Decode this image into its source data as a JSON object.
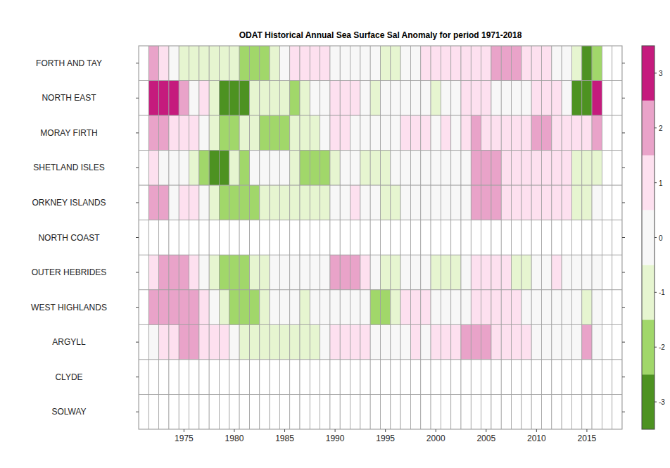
{
  "chart_data": {
    "type": "heatmap",
    "title": "ODAT Historical Annual Sea Surface Sal Anomaly for period 1971-2018",
    "categories": [
      "FORTH AND TAY",
      "NORTH EAST",
      "MORAY FIRTH",
      "SHETLAND ISLES",
      "ORKNEY ISLANDS",
      "NORTH COAST",
      "OUTER HEBRIDES",
      "WEST HIGHLANDS",
      "ARGYLL",
      "CLYDE",
      "SOLWAY"
    ],
    "x": [
      1971,
      1972,
      1973,
      1974,
      1975,
      1976,
      1977,
      1978,
      1979,
      1980,
      1981,
      1982,
      1983,
      1984,
      1985,
      1986,
      1987,
      1988,
      1989,
      1990,
      1991,
      1992,
      1993,
      1994,
      1995,
      1996,
      1997,
      1998,
      1999,
      2000,
      2001,
      2002,
      2003,
      2004,
      2005,
      2006,
      2007,
      2008,
      2009,
      2010,
      2011,
      2012,
      2013,
      2014,
      2015,
      2016,
      2017,
      2018
    ],
    "xlim": [
      1970.5,
      2018.5
    ],
    "xticks": [
      1975,
      1980,
      1985,
      1990,
      1995,
      2000,
      2005,
      2010,
      2015
    ],
    "grid": true,
    "cells": [
      [
        null,
        2,
        1,
        0,
        -1,
        -1,
        -1,
        -1,
        -1,
        -1,
        -2,
        -2,
        -2,
        -1,
        0,
        1,
        1,
        1,
        1,
        0,
        0,
        0,
        0,
        0,
        -1,
        -1,
        0,
        0,
        1,
        1,
        1,
        1,
        1,
        1,
        1,
        2,
        2,
        2,
        1,
        1,
        1,
        0,
        0,
        -1,
        -3,
        -2,
        null,
        null
      ],
      [
        null,
        3,
        3,
        3,
        2,
        0,
        1,
        -1,
        -3,
        -3,
        -3,
        -1,
        -1,
        -1,
        -1,
        -2,
        -1,
        0,
        0,
        1,
        1,
        1,
        0,
        -1,
        0,
        0,
        0,
        0,
        0,
        -1,
        0,
        0,
        1,
        1,
        1,
        0,
        0,
        0,
        0,
        1,
        1,
        1,
        0,
        -3,
        -3,
        3,
        null,
        null
      ],
      [
        null,
        2,
        2,
        1,
        1,
        1,
        0,
        -1,
        -2,
        -2,
        -1,
        -1,
        -2,
        -2,
        -2,
        -1,
        -1,
        -1,
        0,
        1,
        1,
        0,
        0,
        0,
        0,
        0,
        1,
        1,
        1,
        0,
        1,
        0,
        1,
        2,
        1,
        1,
        1,
        1,
        1,
        2,
        2,
        1,
        1,
        1,
        1,
        2,
        null,
        null
      ],
      [
        null,
        1,
        0,
        0,
        0,
        -1,
        -2,
        -3,
        -3,
        -1,
        -2,
        0,
        0,
        0,
        0,
        -1,
        -2,
        -2,
        -2,
        -1,
        0,
        0,
        -1,
        -1,
        -1,
        0,
        0,
        0,
        0,
        0,
        0,
        0,
        0,
        2,
        2,
        2,
        1,
        1,
        1,
        1,
        1,
        1,
        1,
        -1,
        -1,
        -1,
        null,
        null
      ],
      [
        null,
        2,
        2,
        0,
        1,
        1,
        0,
        -1,
        -2,
        -2,
        -2,
        -2,
        -1,
        -1,
        -1,
        -1,
        -1,
        -1,
        -1,
        0,
        0,
        1,
        0,
        0,
        -1,
        -1,
        0,
        0,
        0,
        0,
        0,
        0,
        0,
        2,
        2,
        2,
        1,
        1,
        1,
        1,
        1,
        1,
        1,
        -1,
        -1,
        0,
        null,
        null
      ],
      [
        null,
        null,
        null,
        null,
        null,
        null,
        null,
        null,
        null,
        null,
        null,
        null,
        null,
        null,
        null,
        null,
        null,
        null,
        null,
        null,
        null,
        null,
        null,
        null,
        null,
        null,
        null,
        null,
        null,
        null,
        null,
        null,
        null,
        null,
        null,
        null,
        null,
        null,
        null,
        null,
        null,
        null,
        null,
        null,
        null,
        null,
        null,
        null
      ],
      [
        null,
        1,
        2,
        2,
        2,
        1,
        0,
        -1,
        -2,
        -2,
        -2,
        -1,
        -1,
        0,
        0,
        0,
        0,
        0,
        0,
        2,
        2,
        2,
        1,
        0,
        -1,
        -1,
        0,
        0,
        0,
        -1,
        -1,
        -1,
        0,
        1,
        1,
        1,
        1,
        -1,
        -1,
        0,
        0,
        1,
        0,
        0,
        0,
        0,
        null,
        null
      ],
      [
        null,
        2,
        2,
        2,
        2,
        2,
        1,
        0,
        -1,
        -2,
        -2,
        -2,
        -1,
        0,
        0,
        0,
        -1,
        0,
        0,
        0,
        0,
        0,
        0,
        -2,
        -2,
        -1,
        1,
        1,
        1,
        0,
        0,
        0,
        0,
        1,
        1,
        1,
        1,
        1,
        0,
        0,
        0,
        0,
        0,
        0,
        -1,
        0,
        null,
        null
      ],
      [
        null,
        0,
        1,
        1,
        2,
        2,
        1,
        1,
        1,
        0,
        -1,
        -1,
        -1,
        -1,
        -1,
        -1,
        -1,
        -1,
        0,
        1,
        1,
        1,
        1,
        0,
        0,
        0,
        0,
        1,
        0,
        1,
        1,
        1,
        2,
        2,
        2,
        1,
        1,
        1,
        1,
        0,
        0,
        0,
        0,
        0,
        2,
        0,
        null,
        null
      ],
      [
        null,
        null,
        null,
        null,
        null,
        null,
        null,
        null,
        null,
        null,
        null,
        null,
        null,
        null,
        null,
        null,
        null,
        null,
        null,
        null,
        null,
        null,
        null,
        null,
        null,
        null,
        null,
        null,
        null,
        null,
        null,
        null,
        null,
        null,
        null,
        null,
        null,
        null,
        null,
        null,
        null,
        null,
        null,
        null,
        null,
        null,
        null,
        null
      ],
      [
        null,
        null,
        null,
        null,
        null,
        null,
        null,
        null,
        null,
        null,
        null,
        null,
        null,
        null,
        null,
        null,
        null,
        null,
        null,
        null,
        null,
        null,
        null,
        null,
        null,
        null,
        null,
        null,
        null,
        null,
        null,
        null,
        null,
        null,
        null,
        null,
        null,
        null,
        null,
        null,
        null,
        null,
        null,
        null,
        null,
        null,
        null,
        null
      ]
    ],
    "colorbar": {
      "range": [
        -3.5,
        3.5
      ],
      "ticks": [
        -3,
        -2,
        -1,
        0,
        1,
        2,
        3
      ],
      "colors": [
        "#4d9221",
        "#a1d76a",
        "#e6f5d0",
        "#f7f7f7",
        "#fde0ef",
        "#e9a3c9",
        "#c51b7d"
      ]
    }
  }
}
